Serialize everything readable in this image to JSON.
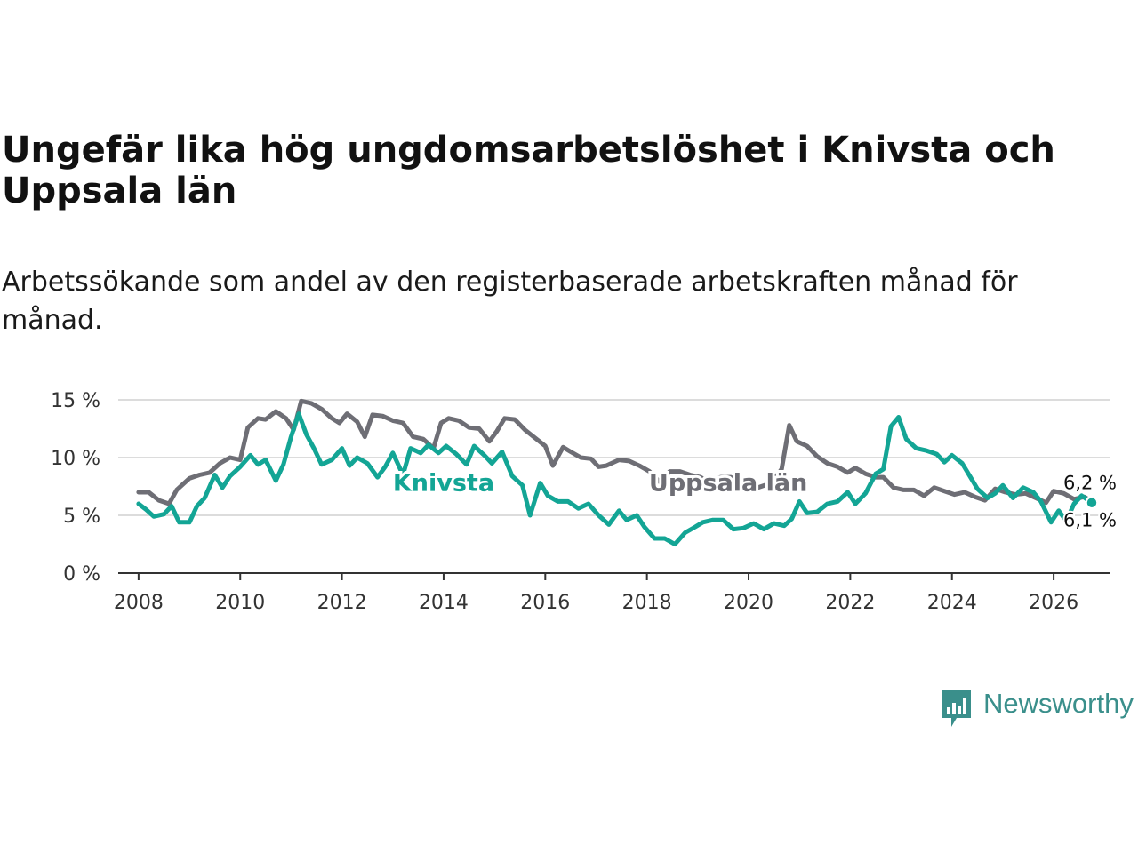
{
  "title": "Ungefär lika hög ungdomsarbetslöshet i Knivsta och Uppsala län",
  "subtitle": "Arbetssökande som andel av den registerbaserade arbetskraften månad för månad.",
  "logo": {
    "text": "Newsworthy",
    "icon": "newsworthy-logo-icon",
    "color": "#3a8f8b"
  },
  "chart_data": {
    "type": "line",
    "title": "Ungefär lika hög ungdomsarbetslöshet i Knivsta och Uppsala län",
    "xlabel": "",
    "ylabel": "",
    "xlim": [
      2007.6,
      2027.1
    ],
    "ylim": [
      0,
      15
    ],
    "grid": true,
    "x_ticks": [
      2008,
      2010,
      2012,
      2014,
      2016,
      2018,
      2020,
      2022,
      2024,
      2026
    ],
    "x_tick_labels": [
      "2008",
      "2010",
      "2012",
      "2014",
      "2016",
      "2018",
      "2020",
      "2022",
      "2024",
      "2026"
    ],
    "y_ticks": [
      0,
      5,
      10,
      15
    ],
    "y_tick_labels": [
      "0 %",
      "5 %",
      "10 %",
      "15 %"
    ],
    "series": [
      {
        "name": "Uppsala län",
        "color": "#6e6e75",
        "end_label": "6,2 %",
        "points": [
          [
            2008.0,
            7.0
          ],
          [
            2008.2,
            7.0
          ],
          [
            2008.4,
            6.3
          ],
          [
            2008.6,
            6.0
          ],
          [
            2008.75,
            7.2
          ],
          [
            2009.0,
            8.2
          ],
          [
            2009.2,
            8.5
          ],
          [
            2009.4,
            8.7
          ],
          [
            2009.6,
            9.5
          ],
          [
            2009.8,
            10.0
          ],
          [
            2010.0,
            9.8
          ],
          [
            2010.15,
            12.6
          ],
          [
            2010.35,
            13.4
          ],
          [
            2010.5,
            13.3
          ],
          [
            2010.7,
            14.0
          ],
          [
            2010.9,
            13.4
          ],
          [
            2011.05,
            12.4
          ],
          [
            2011.2,
            14.9
          ],
          [
            2011.4,
            14.7
          ],
          [
            2011.6,
            14.2
          ],
          [
            2011.8,
            13.4
          ],
          [
            2011.95,
            13.0
          ],
          [
            2012.1,
            13.8
          ],
          [
            2012.3,
            13.1
          ],
          [
            2012.45,
            11.8
          ],
          [
            2012.6,
            13.7
          ],
          [
            2012.8,
            13.6
          ],
          [
            2013.0,
            13.2
          ],
          [
            2013.2,
            13.0
          ],
          [
            2013.4,
            11.8
          ],
          [
            2013.6,
            11.6
          ],
          [
            2013.8,
            10.8
          ],
          [
            2013.95,
            13.0
          ],
          [
            2014.1,
            13.4
          ],
          [
            2014.3,
            13.2
          ],
          [
            2014.5,
            12.6
          ],
          [
            2014.7,
            12.5
          ],
          [
            2014.9,
            11.4
          ],
          [
            2015.05,
            12.3
          ],
          [
            2015.2,
            13.4
          ],
          [
            2015.4,
            13.3
          ],
          [
            2015.6,
            12.4
          ],
          [
            2015.8,
            11.7
          ],
          [
            2016.0,
            11.0
          ],
          [
            2016.15,
            9.3
          ],
          [
            2016.35,
            10.9
          ],
          [
            2016.5,
            10.5
          ],
          [
            2016.7,
            10.0
          ],
          [
            2016.9,
            9.9
          ],
          [
            2017.05,
            9.2
          ],
          [
            2017.2,
            9.3
          ],
          [
            2017.45,
            9.8
          ],
          [
            2017.65,
            9.7
          ],
          [
            2017.85,
            9.3
          ],
          [
            2018.05,
            8.8
          ],
          [
            2018.25,
            7.9
          ],
          [
            2018.45,
            8.8
          ],
          [
            2018.65,
            8.8
          ],
          [
            2018.85,
            8.5
          ],
          [
            2019.05,
            8.3
          ],
          [
            2019.25,
            7.8
          ],
          [
            2019.45,
            8.3
          ],
          [
            2019.65,
            8.3
          ],
          [
            2019.85,
            7.6
          ],
          [
            2020.05,
            7.2
          ],
          [
            2020.25,
            7.5
          ],
          [
            2020.45,
            7.8
          ],
          [
            2020.65,
            9.0
          ],
          [
            2020.8,
            12.8
          ],
          [
            2020.95,
            11.4
          ],
          [
            2021.15,
            11.0
          ],
          [
            2021.35,
            10.1
          ],
          [
            2021.55,
            9.5
          ],
          [
            2021.75,
            9.2
          ],
          [
            2021.95,
            8.7
          ],
          [
            2022.1,
            9.1
          ],
          [
            2022.3,
            8.6
          ],
          [
            2022.5,
            8.3
          ],
          [
            2022.65,
            8.3
          ],
          [
            2022.85,
            7.4
          ],
          [
            2023.05,
            7.2
          ],
          [
            2023.25,
            7.2
          ],
          [
            2023.45,
            6.7
          ],
          [
            2023.65,
            7.4
          ],
          [
            2023.85,
            7.1
          ],
          [
            2024.05,
            6.8
          ],
          [
            2024.25,
            7.0
          ],
          [
            2024.45,
            6.6
          ],
          [
            2024.65,
            6.3
          ],
          [
            2024.85,
            7.3
          ],
          [
            2025.05,
            7.0
          ],
          [
            2025.25,
            6.8
          ],
          [
            2025.45,
            6.9
          ],
          [
            2025.65,
            6.5
          ],
          [
            2025.85,
            6.1
          ],
          [
            2026.0,
            7.1
          ],
          [
            2026.2,
            6.9
          ],
          [
            2026.4,
            6.4
          ],
          [
            2026.6,
            6.6
          ],
          [
            2026.75,
            6.2
          ]
        ]
      },
      {
        "name": "Knivsta",
        "color": "#13a595",
        "end_label": "6,1 %",
        "points": [
          [
            2008.0,
            6.0
          ],
          [
            2008.15,
            5.5
          ],
          [
            2008.3,
            4.9
          ],
          [
            2008.5,
            5.1
          ],
          [
            2008.65,
            5.8
          ],
          [
            2008.8,
            4.4
          ],
          [
            2009.0,
            4.4
          ],
          [
            2009.15,
            5.8
          ],
          [
            2009.3,
            6.5
          ],
          [
            2009.5,
            8.5
          ],
          [
            2009.65,
            7.4
          ],
          [
            2009.8,
            8.4
          ],
          [
            2010.0,
            9.2
          ],
          [
            2010.2,
            10.2
          ],
          [
            2010.35,
            9.4
          ],
          [
            2010.5,
            9.8
          ],
          [
            2010.7,
            8.0
          ],
          [
            2010.85,
            9.4
          ],
          [
            2011.0,
            11.8
          ],
          [
            2011.15,
            13.8
          ],
          [
            2011.3,
            12.0
          ],
          [
            2011.45,
            10.8
          ],
          [
            2011.6,
            9.4
          ],
          [
            2011.8,
            9.8
          ],
          [
            2012.0,
            10.8
          ],
          [
            2012.15,
            9.3
          ],
          [
            2012.3,
            10.0
          ],
          [
            2012.5,
            9.5
          ],
          [
            2012.7,
            8.3
          ],
          [
            2012.85,
            9.2
          ],
          [
            2013.0,
            10.4
          ],
          [
            2013.2,
            8.5
          ],
          [
            2013.35,
            10.8
          ],
          [
            2013.55,
            10.4
          ],
          [
            2013.7,
            11.1
          ],
          [
            2013.9,
            10.4
          ],
          [
            2014.05,
            11.0
          ],
          [
            2014.25,
            10.3
          ],
          [
            2014.45,
            9.4
          ],
          [
            2014.6,
            11.0
          ],
          [
            2014.8,
            10.2
          ],
          [
            2014.95,
            9.5
          ],
          [
            2015.15,
            10.5
          ],
          [
            2015.35,
            8.4
          ],
          [
            2015.55,
            7.6
          ],
          [
            2015.7,
            5.0
          ],
          [
            2015.9,
            7.8
          ],
          [
            2016.05,
            6.7
          ],
          [
            2016.25,
            6.2
          ],
          [
            2016.45,
            6.2
          ],
          [
            2016.65,
            5.6
          ],
          [
            2016.85,
            6.0
          ],
          [
            2017.05,
            5.0
          ],
          [
            2017.25,
            4.2
          ],
          [
            2017.45,
            5.4
          ],
          [
            2017.6,
            4.6
          ],
          [
            2017.8,
            5.0
          ],
          [
            2017.95,
            4.0
          ],
          [
            2018.15,
            3.0
          ],
          [
            2018.35,
            3.0
          ],
          [
            2018.55,
            2.5
          ],
          [
            2018.75,
            3.5
          ],
          [
            2018.95,
            4.0
          ],
          [
            2019.1,
            4.4
          ],
          [
            2019.3,
            4.6
          ],
          [
            2019.5,
            4.6
          ],
          [
            2019.7,
            3.8
          ],
          [
            2019.9,
            3.9
          ],
          [
            2020.1,
            4.3
          ],
          [
            2020.3,
            3.8
          ],
          [
            2020.5,
            4.3
          ],
          [
            2020.7,
            4.1
          ],
          [
            2020.85,
            4.7
          ],
          [
            2021.0,
            6.2
          ],
          [
            2021.15,
            5.2
          ],
          [
            2021.35,
            5.3
          ],
          [
            2021.55,
            6.0
          ],
          [
            2021.75,
            6.2
          ],
          [
            2021.95,
            7.0
          ],
          [
            2022.1,
            6.0
          ],
          [
            2022.3,
            6.9
          ],
          [
            2022.5,
            8.6
          ],
          [
            2022.65,
            9.0
          ],
          [
            2022.8,
            12.7
          ],
          [
            2022.95,
            13.5
          ],
          [
            2023.1,
            11.6
          ],
          [
            2023.3,
            10.8
          ],
          [
            2023.5,
            10.6
          ],
          [
            2023.7,
            10.3
          ],
          [
            2023.85,
            9.6
          ],
          [
            2024.0,
            10.2
          ],
          [
            2024.2,
            9.5
          ],
          [
            2024.35,
            8.4
          ],
          [
            2024.5,
            7.3
          ],
          [
            2024.7,
            6.5
          ],
          [
            2024.85,
            6.9
          ],
          [
            2025.0,
            7.6
          ],
          [
            2025.2,
            6.5
          ],
          [
            2025.4,
            7.4
          ],
          [
            2025.6,
            7.0
          ],
          [
            2025.75,
            6.2
          ],
          [
            2025.95,
            4.4
          ],
          [
            2026.1,
            5.4
          ],
          [
            2026.25,
            4.5
          ],
          [
            2026.4,
            6.0
          ],
          [
            2026.55,
            6.7
          ],
          [
            2026.75,
            6.1
          ]
        ]
      }
    ],
    "annotations": [
      {
        "text": "Knivsta",
        "series": "Knivsta",
        "x": 2014.0,
        "y": 7.9
      },
      {
        "text": "Uppsala län",
        "series": "Uppsala län",
        "x": 2019.6,
        "y": 7.9
      }
    ]
  }
}
